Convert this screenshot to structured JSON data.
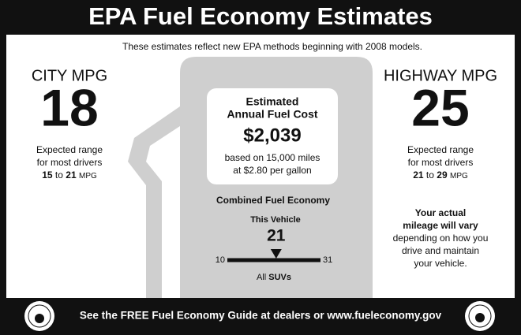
{
  "header": {
    "title": "EPA Fuel Economy Estimates",
    "subtitle": "These estimates reflect new EPA methods beginning with 2008 models."
  },
  "city": {
    "label": "CITY MPG",
    "value": 18,
    "range_lines": [
      "Expected range",
      "for most drivers"
    ],
    "range_low": 15,
    "range_to": "to",
    "range_high": 21,
    "range_unit": "MPG"
  },
  "highway": {
    "label": "HIGHWAY MPG",
    "value": 25,
    "range_lines": [
      "Expected range",
      "for most drivers"
    ],
    "range_low": 21,
    "range_to": "to",
    "range_high": 29,
    "range_unit": "MPG"
  },
  "fuel_cost": {
    "title_lines": [
      "Estimated",
      "Annual Fuel Cost"
    ],
    "amount": "$2,039",
    "basis_lines": [
      "based on 15,000 miles",
      "at $2.80 per gallon"
    ]
  },
  "combined": {
    "label": "Combined Fuel Economy",
    "vehicle_label": "This Vehicle",
    "value": 21,
    "scale_min": 10,
    "scale_max": 31,
    "class_prefix": "All",
    "class_name": "SUVs"
  },
  "note": {
    "bold_lines": [
      "Your actual",
      "mileage will vary"
    ],
    "lines": [
      "depending on how you",
      "drive and maintain",
      "your vehicle."
    ]
  },
  "footer": {
    "text": "See the FREE Fuel Economy Guide at dealers or www.fueleconomy.gov"
  }
}
